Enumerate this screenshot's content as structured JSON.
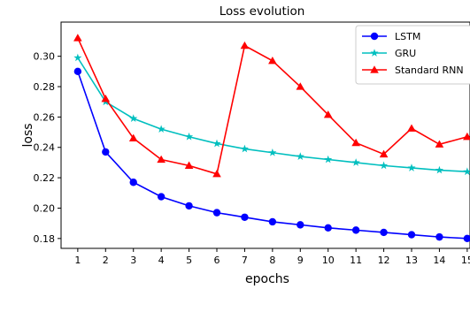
{
  "chart_data": {
    "type": "line",
    "title": "Loss evolution",
    "xlabel": "epochs",
    "ylabel": "loss",
    "x": [
      1,
      2,
      3,
      4,
      5,
      6,
      7,
      8,
      9,
      10,
      11,
      12,
      13,
      14,
      15
    ],
    "xlim": [
      0.4,
      15.1
    ],
    "ylim": [
      0.1735,
      0.3225
    ],
    "yticks": [
      0.18,
      0.2,
      0.22,
      0.24,
      0.26,
      0.28,
      0.3
    ],
    "ytick_labels": [
      "0.18",
      "0.20",
      "0.22",
      "0.24",
      "0.26",
      "0.28",
      "0.30"
    ],
    "grid": false,
    "legend_position": "top-right",
    "series": [
      {
        "name": "LSTM",
        "color": "#0000ff",
        "marker": "circle",
        "values": [
          0.29,
          0.237,
          0.217,
          0.2075,
          0.2015,
          0.197,
          0.194,
          0.191,
          0.189,
          0.187,
          0.1855,
          0.184,
          0.1825,
          0.181,
          0.18
        ]
      },
      {
        "name": "GRU",
        "color": "#00bfbf",
        "marker": "star",
        "values": [
          0.299,
          0.27,
          0.259,
          0.252,
          0.247,
          0.2425,
          0.239,
          0.2365,
          0.234,
          0.232,
          0.23,
          0.228,
          0.2265,
          0.225,
          0.224
        ]
      },
      {
        "name": "Standard RNN",
        "color": "#ff0000",
        "marker": "triangle",
        "values": [
          0.312,
          0.272,
          0.246,
          0.232,
          0.228,
          0.2225,
          0.307,
          0.297,
          0.28,
          0.2615,
          0.243,
          0.2355,
          0.2525,
          0.242,
          0.247
        ]
      }
    ]
  }
}
